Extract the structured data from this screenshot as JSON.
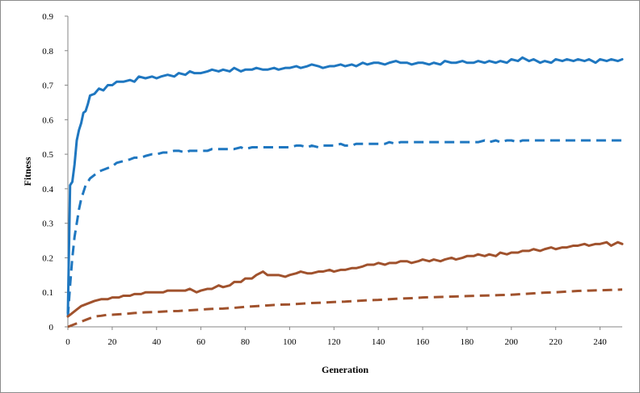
{
  "chart_data": {
    "type": "line",
    "title": "",
    "xlabel": "Generation",
    "ylabel": "Fitness",
    "xlim": [
      0,
      250
    ],
    "ylim": [
      0,
      0.9
    ],
    "xticks": [
      0,
      20,
      40,
      60,
      80,
      100,
      120,
      140,
      160,
      180,
      200,
      220,
      240
    ],
    "yticks": [
      0,
      0.1,
      0.2,
      0.3,
      0.4,
      0.5,
      0.6,
      0.7,
      0.8,
      0.9
    ],
    "xtick_labels": [
      "0",
      "20",
      "40",
      "60",
      "80",
      "100",
      "120",
      "140",
      "160",
      "180",
      "200",
      "220",
      "240"
    ],
    "ytick_labels": [
      "0",
      "0.1",
      "0.2",
      "0.3",
      "0.4",
      "0.5",
      "0.6",
      "0.7",
      "0.8",
      "0.9"
    ],
    "grid": false,
    "legend": "none",
    "series": [
      {
        "color": "#1f77c0",
        "dash": "solid",
        "x": [
          0,
          1,
          2,
          3,
          4,
          5,
          6,
          7,
          8,
          9,
          10,
          12,
          14,
          16,
          18,
          20,
          22,
          25,
          28,
          30,
          32,
          35,
          38,
          40,
          42,
          45,
          48,
          50,
          53,
          55,
          57,
          60,
          63,
          65,
          68,
          70,
          73,
          75,
          78,
          80,
          83,
          85,
          88,
          90,
          93,
          95,
          98,
          100,
          103,
          105,
          108,
          110,
          113,
          115,
          118,
          120,
          123,
          125,
          128,
          130,
          133,
          135,
          138,
          140,
          143,
          145,
          148,
          150,
          153,
          155,
          158,
          160,
          163,
          165,
          168,
          170,
          173,
          175,
          178,
          180,
          183,
          185,
          188,
          190,
          193,
          195,
          198,
          200,
          203,
          205,
          208,
          210,
          213,
          215,
          218,
          220,
          223,
          225,
          228,
          230,
          233,
          235,
          238,
          240,
          243,
          245,
          248,
          250
        ],
        "values": [
          0.04,
          0.41,
          0.42,
          0.47,
          0.54,
          0.57,
          0.59,
          0.62,
          0.625,
          0.645,
          0.67,
          0.675,
          0.69,
          0.685,
          0.7,
          0.7,
          0.71,
          0.71,
          0.715,
          0.71,
          0.725,
          0.72,
          0.725,
          0.72,
          0.725,
          0.73,
          0.725,
          0.735,
          0.73,
          0.74,
          0.735,
          0.735,
          0.74,
          0.745,
          0.74,
          0.745,
          0.74,
          0.75,
          0.74,
          0.745,
          0.745,
          0.75,
          0.745,
          0.745,
          0.75,
          0.745,
          0.75,
          0.75,
          0.755,
          0.75,
          0.755,
          0.76,
          0.755,
          0.75,
          0.755,
          0.755,
          0.76,
          0.755,
          0.76,
          0.755,
          0.765,
          0.76,
          0.765,
          0.765,
          0.76,
          0.765,
          0.77,
          0.765,
          0.765,
          0.76,
          0.765,
          0.765,
          0.76,
          0.765,
          0.76,
          0.77,
          0.765,
          0.765,
          0.77,
          0.765,
          0.765,
          0.77,
          0.765,
          0.77,
          0.765,
          0.77,
          0.765,
          0.775,
          0.77,
          0.78,
          0.77,
          0.775,
          0.765,
          0.77,
          0.765,
          0.775,
          0.77,
          0.775,
          0.77,
          0.775,
          0.77,
          0.775,
          0.765,
          0.775,
          0.77,
          0.775,
          0.77,
          0.775
        ]
      },
      {
        "color": "#1f77c0",
        "dash": "dashed",
        "x": [
          0,
          1,
          2,
          3,
          4,
          5,
          6,
          7,
          8,
          9,
          10,
          12,
          14,
          16,
          18,
          20,
          22,
          25,
          28,
          30,
          33,
          35,
          38,
          40,
          43,
          45,
          48,
          50,
          53,
          55,
          58,
          60,
          63,
          65,
          68,
          70,
          73,
          75,
          78,
          80,
          83,
          85,
          88,
          90,
          93,
          95,
          98,
          100,
          103,
          105,
          108,
          110,
          113,
          115,
          118,
          120,
          123,
          125,
          128,
          130,
          133,
          135,
          138,
          140,
          143,
          145,
          148,
          150,
          153,
          155,
          158,
          160,
          163,
          165,
          168,
          170,
          173,
          175,
          178,
          180,
          183,
          185,
          188,
          190,
          193,
          195,
          198,
          200,
          203,
          205,
          208,
          210,
          213,
          215,
          218,
          220,
          223,
          225,
          228,
          230,
          233,
          235,
          238,
          240,
          243,
          245,
          248,
          250
        ],
        "values": [
          0.03,
          0.12,
          0.2,
          0.26,
          0.3,
          0.34,
          0.37,
          0.39,
          0.41,
          0.42,
          0.43,
          0.44,
          0.45,
          0.455,
          0.46,
          0.465,
          0.475,
          0.48,
          0.485,
          0.49,
          0.49,
          0.495,
          0.5,
          0.5,
          0.505,
          0.505,
          0.51,
          0.51,
          0.505,
          0.51,
          0.51,
          0.51,
          0.51,
          0.515,
          0.515,
          0.515,
          0.515,
          0.515,
          0.52,
          0.515,
          0.52,
          0.52,
          0.52,
          0.52,
          0.52,
          0.52,
          0.52,
          0.52,
          0.525,
          0.525,
          0.52,
          0.525,
          0.52,
          0.525,
          0.525,
          0.525,
          0.53,
          0.525,
          0.525,
          0.53,
          0.53,
          0.53,
          0.53,
          0.53,
          0.53,
          0.535,
          0.53,
          0.535,
          0.535,
          0.535,
          0.535,
          0.535,
          0.535,
          0.535,
          0.535,
          0.535,
          0.535,
          0.535,
          0.535,
          0.535,
          0.535,
          0.535,
          0.54,
          0.535,
          0.54,
          0.535,
          0.54,
          0.54,
          0.535,
          0.54,
          0.54,
          0.54,
          0.54,
          0.54,
          0.54,
          0.54,
          0.54,
          0.54,
          0.54,
          0.54,
          0.54,
          0.54,
          0.54,
          0.54,
          0.54,
          0.54,
          0.54,
          0.54
        ]
      },
      {
        "color": "#a0522d",
        "dash": "solid",
        "x": [
          0,
          2,
          4,
          6,
          8,
          10,
          12,
          15,
          18,
          20,
          23,
          25,
          28,
          30,
          33,
          35,
          38,
          40,
          43,
          45,
          48,
          50,
          53,
          55,
          58,
          60,
          63,
          65,
          68,
          70,
          73,
          75,
          78,
          80,
          83,
          85,
          88,
          90,
          93,
          95,
          98,
          100,
          103,
          105,
          108,
          110,
          113,
          115,
          118,
          120,
          123,
          125,
          128,
          130,
          133,
          135,
          138,
          140,
          143,
          145,
          148,
          150,
          153,
          155,
          158,
          160,
          163,
          165,
          168,
          170,
          173,
          175,
          178,
          180,
          183,
          185,
          188,
          190,
          193,
          195,
          198,
          200,
          203,
          205,
          208,
          210,
          213,
          215,
          218,
          220,
          223,
          225,
          228,
          230,
          233,
          235,
          238,
          240,
          243,
          245,
          248,
          250
        ],
        "values": [
          0.03,
          0.04,
          0.05,
          0.06,
          0.065,
          0.07,
          0.075,
          0.08,
          0.08,
          0.085,
          0.085,
          0.09,
          0.09,
          0.095,
          0.095,
          0.1,
          0.1,
          0.1,
          0.1,
          0.105,
          0.105,
          0.105,
          0.105,
          0.11,
          0.1,
          0.105,
          0.11,
          0.11,
          0.12,
          0.115,
          0.12,
          0.13,
          0.13,
          0.14,
          0.14,
          0.15,
          0.16,
          0.15,
          0.15,
          0.15,
          0.145,
          0.15,
          0.155,
          0.16,
          0.155,
          0.155,
          0.16,
          0.16,
          0.165,
          0.16,
          0.165,
          0.165,
          0.17,
          0.17,
          0.175,
          0.18,
          0.18,
          0.185,
          0.18,
          0.185,
          0.185,
          0.19,
          0.19,
          0.185,
          0.19,
          0.195,
          0.19,
          0.195,
          0.19,
          0.195,
          0.2,
          0.195,
          0.2,
          0.205,
          0.205,
          0.21,
          0.205,
          0.21,
          0.205,
          0.215,
          0.21,
          0.215,
          0.215,
          0.22,
          0.22,
          0.225,
          0.22,
          0.225,
          0.23,
          0.225,
          0.23,
          0.23,
          0.235,
          0.235,
          0.24,
          0.235,
          0.24,
          0.24,
          0.245,
          0.235,
          0.245,
          0.24
        ]
      },
      {
        "color": "#a0522d",
        "dash": "dashed",
        "x": [
          0,
          2,
          4,
          6,
          8,
          10,
          12,
          15,
          18,
          20,
          25,
          30,
          35,
          40,
          45,
          50,
          55,
          60,
          65,
          70,
          75,
          80,
          85,
          90,
          95,
          100,
          105,
          110,
          115,
          120,
          125,
          130,
          135,
          140,
          145,
          150,
          155,
          160,
          165,
          170,
          175,
          180,
          185,
          190,
          195,
          200,
          205,
          210,
          215,
          220,
          225,
          230,
          235,
          240,
          245,
          250
        ],
        "values": [
          0.0,
          0.005,
          0.01,
          0.015,
          0.02,
          0.025,
          0.03,
          0.032,
          0.035,
          0.035,
          0.037,
          0.04,
          0.042,
          0.043,
          0.045,
          0.046,
          0.048,
          0.05,
          0.052,
          0.053,
          0.055,
          0.058,
          0.06,
          0.062,
          0.064,
          0.065,
          0.067,
          0.069,
          0.07,
          0.072,
          0.073,
          0.075,
          0.077,
          0.078,
          0.08,
          0.082,
          0.083,
          0.085,
          0.086,
          0.087,
          0.088,
          0.089,
          0.09,
          0.091,
          0.092,
          0.093,
          0.095,
          0.097,
          0.099,
          0.1,
          0.102,
          0.104,
          0.105,
          0.106,
          0.107,
          0.108
        ]
      }
    ]
  }
}
